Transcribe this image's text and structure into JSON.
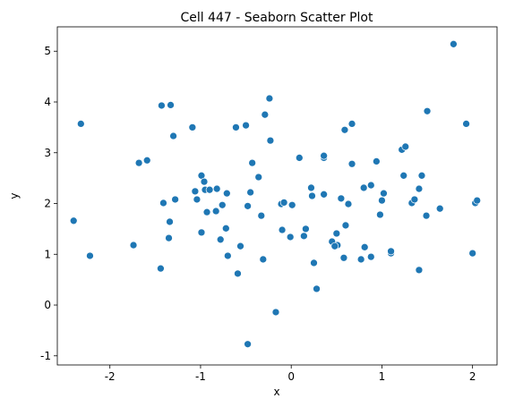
{
  "chart_data": {
    "type": "scatter",
    "title": "Cell 447 - Seaborn Scatter Plot",
    "x_label": "x",
    "y_label": "y",
    "color": "#1f77b4",
    "x": [
      1.79,
      -2.32,
      -2.4,
      -2.22,
      -1.74,
      -1.68,
      -1.59,
      -1.43,
      -1.33,
      -1.3,
      -1.41,
      -1.28,
      -1.34,
      -1.35,
      -1.44,
      -1.09,
      -1.06,
      -1.04,
      -0.99,
      -0.96,
      -0.95,
      -0.9,
      -0.93,
      -0.83,
      -0.82,
      -0.76,
      -0.71,
      -0.99,
      -0.78,
      -0.72,
      -0.7,
      -0.56,
      -0.59,
      -0.61,
      -0.5,
      -0.48,
      -0.45,
      -0.43,
      -0.36,
      -0.29,
      -0.24,
      -0.23,
      -0.33,
      -0.31,
      -0.48,
      -0.17,
      -0.1,
      -0.11,
      -0.08,
      0.01,
      -0.01,
      0.09,
      0.14,
      0.16,
      0.22,
      0.23,
      0.25,
      0.28,
      0.36,
      0.36,
      0.36,
      0.45,
      0.5,
      0.51,
      0.48,
      0.55,
      0.58,
      0.59,
      0.6,
      0.63,
      0.67,
      0.67,
      0.77,
      0.8,
      0.81,
      0.88,
      0.88,
      0.94,
      0.98,
      1.0,
      1.02,
      1.1,
      1.1,
      1.22,
      1.26,
      1.24,
      1.33,
      1.36,
      1.41,
      1.44,
      1.49,
      1.5,
      1.41,
      1.64,
      1.93,
      2.0,
      2.03,
      2.05
    ],
    "values": [
      5.14,
      3.57,
      1.66,
      0.97,
      1.18,
      2.8,
      2.85,
      3.93,
      3.94,
      3.33,
      2.01,
      2.08,
      1.64,
      1.32,
      0.72,
      3.5,
      2.24,
      2.08,
      2.55,
      2.43,
      2.27,
      2.27,
      1.83,
      1.85,
      2.29,
      1.97,
      2.2,
      1.43,
      1.29,
      1.51,
      0.97,
      1.16,
      0.62,
      3.5,
      3.54,
      1.95,
      2.22,
      2.8,
      2.52,
      3.75,
      4.07,
      3.24,
      1.76,
      0.9,
      -0.77,
      -0.14,
      1.48,
      1.99,
      2.02,
      1.97,
      1.34,
      2.9,
      1.36,
      1.5,
      2.31,
      2.15,
      0.83,
      0.32,
      2.9,
      2.94,
      2.18,
      1.25,
      1.41,
      1.18,
      1.16,
      2.1,
      0.93,
      3.45,
      1.57,
      1.99,
      3.57,
      2.78,
      0.9,
      2.31,
      1.14,
      2.36,
      0.95,
      2.83,
      1.78,
      2.06,
      2.2,
      1.02,
      1.06,
      3.06,
      3.12,
      2.55,
      2.01,
      2.08,
      2.29,
      2.55,
      1.76,
      3.82,
      0.69,
      1.9,
      3.57,
      1.02,
      2.01,
      2.06
    ],
    "xlim": [
      -2.58,
      2.27
    ],
    "ylim": [
      -1.18,
      5.48
    ],
    "xticks": [
      -2,
      -1,
      0,
      1,
      2
    ],
    "yticks": [
      -1,
      0,
      1,
      2,
      3,
      4,
      5
    ]
  }
}
